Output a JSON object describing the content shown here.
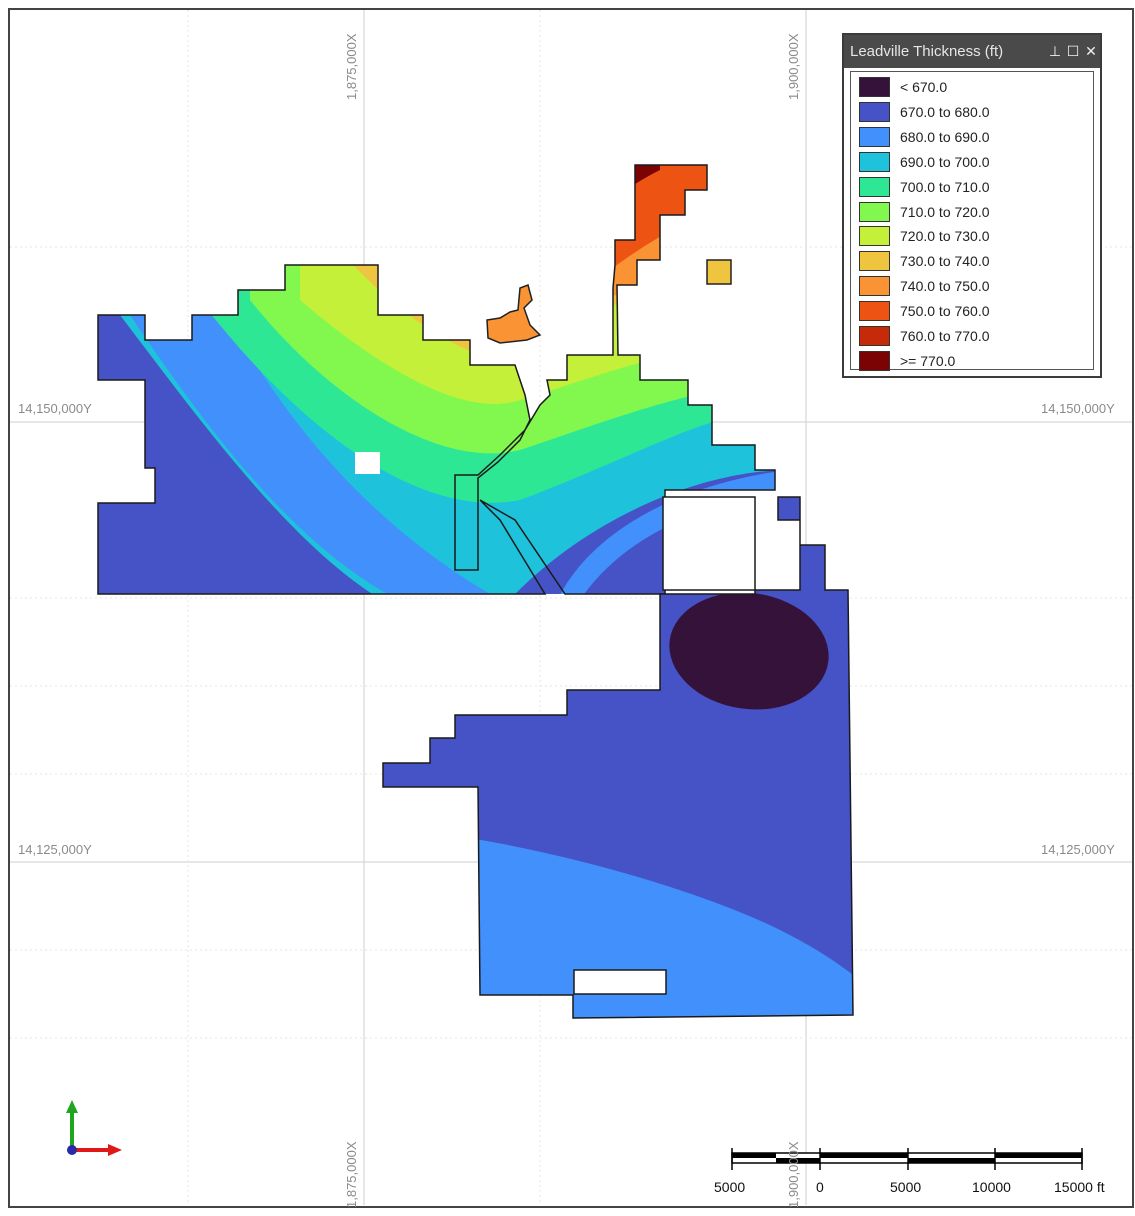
{
  "legend": {
    "title": "Leadville Thickness (ft)",
    "items": [
      {
        "label": "< 670.0",
        "color": "#35123a"
      },
      {
        "label": "670.0 to 680.0",
        "color": "#4553c6"
      },
      {
        "label": "680.0 to 690.0",
        "color": "#4290fb"
      },
      {
        "label": "690.0 to 700.0",
        "color": "#1ec3db"
      },
      {
        "label": "700.0 to 710.0",
        "color": "#2ee795"
      },
      {
        "label": "710.0 to 720.0",
        "color": "#82f84f"
      },
      {
        "label": "720.0 to 730.0",
        "color": "#c4f03a"
      },
      {
        "label": "730.0 to 740.0",
        "color": "#efc43f"
      },
      {
        "label": "740.0 to 750.0",
        "color": "#f99334"
      },
      {
        "label": "750.0 to 760.0",
        "color": "#ed5414"
      },
      {
        "label": "760.0 to 770.0",
        "color": "#c62a08"
      },
      {
        "label": ">= 770.0",
        "color": "#7b0303"
      }
    ]
  },
  "axes": {
    "x_labels": [
      "1,875,000X",
      "1,900,000X"
    ],
    "y_labels": [
      "14,150,000Y",
      "14,125,000Y"
    ]
  },
  "scale": {
    "labels": [
      "5000",
      "0",
      "5000",
      "10000",
      "15000 ft"
    ]
  }
}
